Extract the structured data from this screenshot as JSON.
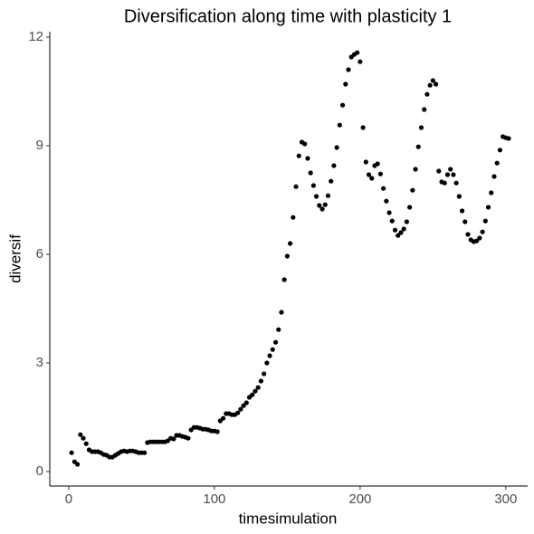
{
  "chart_data": {
    "type": "scatter",
    "title": "Diversification along time with plasticity 1",
    "x_label": "timesimulation",
    "y_label": "diversif",
    "color": "#000000",
    "xlim": [
      -13,
      315
    ],
    "ylim": [
      -0.4,
      12.15
    ],
    "xticks": [
      0,
      100,
      200,
      300
    ],
    "yticks": [
      0,
      3,
      6,
      9,
      12
    ],
    "x": [
      2,
      4,
      6,
      8,
      10,
      12,
      14,
      16,
      18,
      20,
      22,
      24,
      26,
      28,
      30,
      32,
      34,
      36,
      38,
      40,
      42,
      44,
      46,
      48,
      50,
      52,
      54,
      56,
      58,
      60,
      62,
      64,
      66,
      68,
      70,
      72,
      74,
      76,
      78,
      80,
      82,
      84,
      86,
      88,
      90,
      92,
      94,
      96,
      98,
      100,
      102,
      104,
      106,
      108,
      110,
      112,
      114,
      116,
      118,
      120,
      122,
      124,
      126,
      128,
      130,
      132,
      134,
      136,
      138,
      140,
      142,
      144,
      146,
      148,
      150,
      152,
      154,
      156,
      158,
      160,
      162,
      164,
      166,
      168,
      170,
      172,
      174,
      176,
      178,
      180,
      182,
      184,
      186,
      188,
      190,
      192,
      194,
      196,
      198,
      200,
      202,
      204,
      206,
      208,
      210,
      212,
      214,
      216,
      218,
      220,
      222,
      224,
      226,
      228,
      230,
      232,
      234,
      236,
      238,
      240,
      242,
      244,
      246,
      248,
      250,
      252,
      254,
      256,
      258,
      260,
      262,
      264,
      266,
      268,
      270,
      272,
      274,
      276,
      278,
      280,
      282,
      284,
      286,
      288,
      290,
      292,
      294,
      296,
      298,
      300,
      302
    ],
    "values": [
      0.52,
      0.27,
      0.2,
      1.02,
      0.92,
      0.77,
      0.6,
      0.55,
      0.55,
      0.55,
      0.52,
      0.47,
      0.45,
      0.4,
      0.4,
      0.45,
      0.5,
      0.55,
      0.57,
      0.55,
      0.57,
      0.57,
      0.55,
      0.52,
      0.52,
      0.52,
      0.8,
      0.82,
      0.82,
      0.82,
      0.82,
      0.82,
      0.82,
      0.85,
      0.92,
      0.9,
      1.0,
      1.0,
      0.97,
      0.95,
      0.92,
      1.15,
      1.22,
      1.22,
      1.2,
      1.17,
      1.17,
      1.15,
      1.12,
      1.12,
      1.1,
      1.4,
      1.47,
      1.6,
      1.6,
      1.57,
      1.57,
      1.62,
      1.72,
      1.82,
      1.9,
      2.05,
      2.12,
      2.22,
      2.32,
      2.5,
      2.7,
      3.0,
      3.2,
      3.37,
      3.57,
      3.92,
      4.4,
      5.3,
      5.95,
      6.3,
      7.02,
      7.87,
      8.72,
      9.1,
      9.05,
      8.65,
      8.25,
      7.9,
      7.6,
      7.35,
      7.25,
      7.37,
      7.62,
      8.02,
      8.45,
      8.95,
      9.57,
      10.12,
      10.7,
      11.1,
      11.45,
      11.52,
      11.57,
      11.32,
      9.5,
      8.55,
      8.2,
      8.1,
      8.45,
      8.5,
      8.22,
      7.82,
      7.47,
      7.15,
      6.92,
      6.67,
      6.52,
      6.6,
      6.7,
      6.9,
      7.3,
      7.77,
      8.35,
      8.97,
      9.5,
      10.0,
      10.42,
      10.67,
      10.8,
      10.7,
      8.3,
      8.0,
      7.97,
      8.2,
      8.35,
      8.2,
      7.97,
      7.6,
      7.2,
      6.9,
      6.55,
      6.4,
      6.35,
      6.37,
      6.45,
      6.62,
      6.92,
      7.3,
      7.7,
      8.15,
      8.52,
      8.88,
      9.25,
      9.22,
      9.2
    ]
  }
}
